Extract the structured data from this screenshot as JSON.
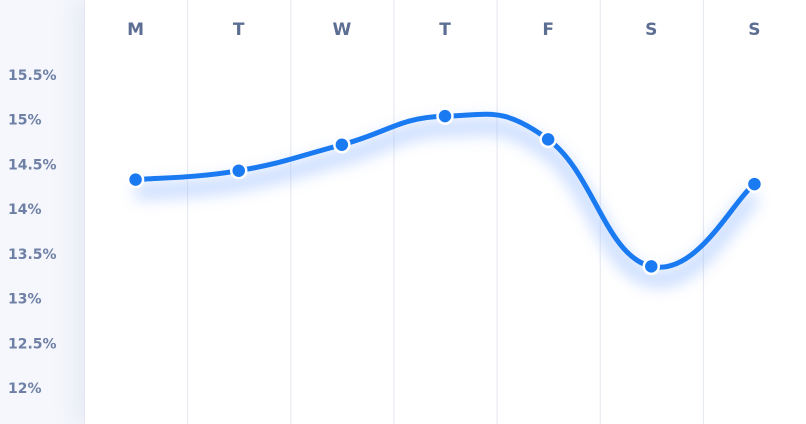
{
  "chart_data": {
    "type": "line",
    "categories": [
      "M",
      "T",
      "W",
      "T",
      "F",
      "S",
      "S"
    ],
    "series": [
      {
        "values": [
          14.33,
          14.43,
          14.72,
          15.04,
          14.78,
          13.36,
          14.28
        ]
      }
    ],
    "y_ticks": [
      "15.5%",
      "15%",
      "14.5%",
      "14%",
      "13.5%",
      "13%",
      "12.5%",
      "12%"
    ],
    "ylim": [
      12,
      15.5
    ],
    "grid": "vertical",
    "colors": {
      "line": "#1a7af2",
      "glow": "#8fb6ff",
      "grid": "#e3e6ee",
      "tick_y": "#6f80a6",
      "tick_x": "#5d6e93"
    }
  }
}
